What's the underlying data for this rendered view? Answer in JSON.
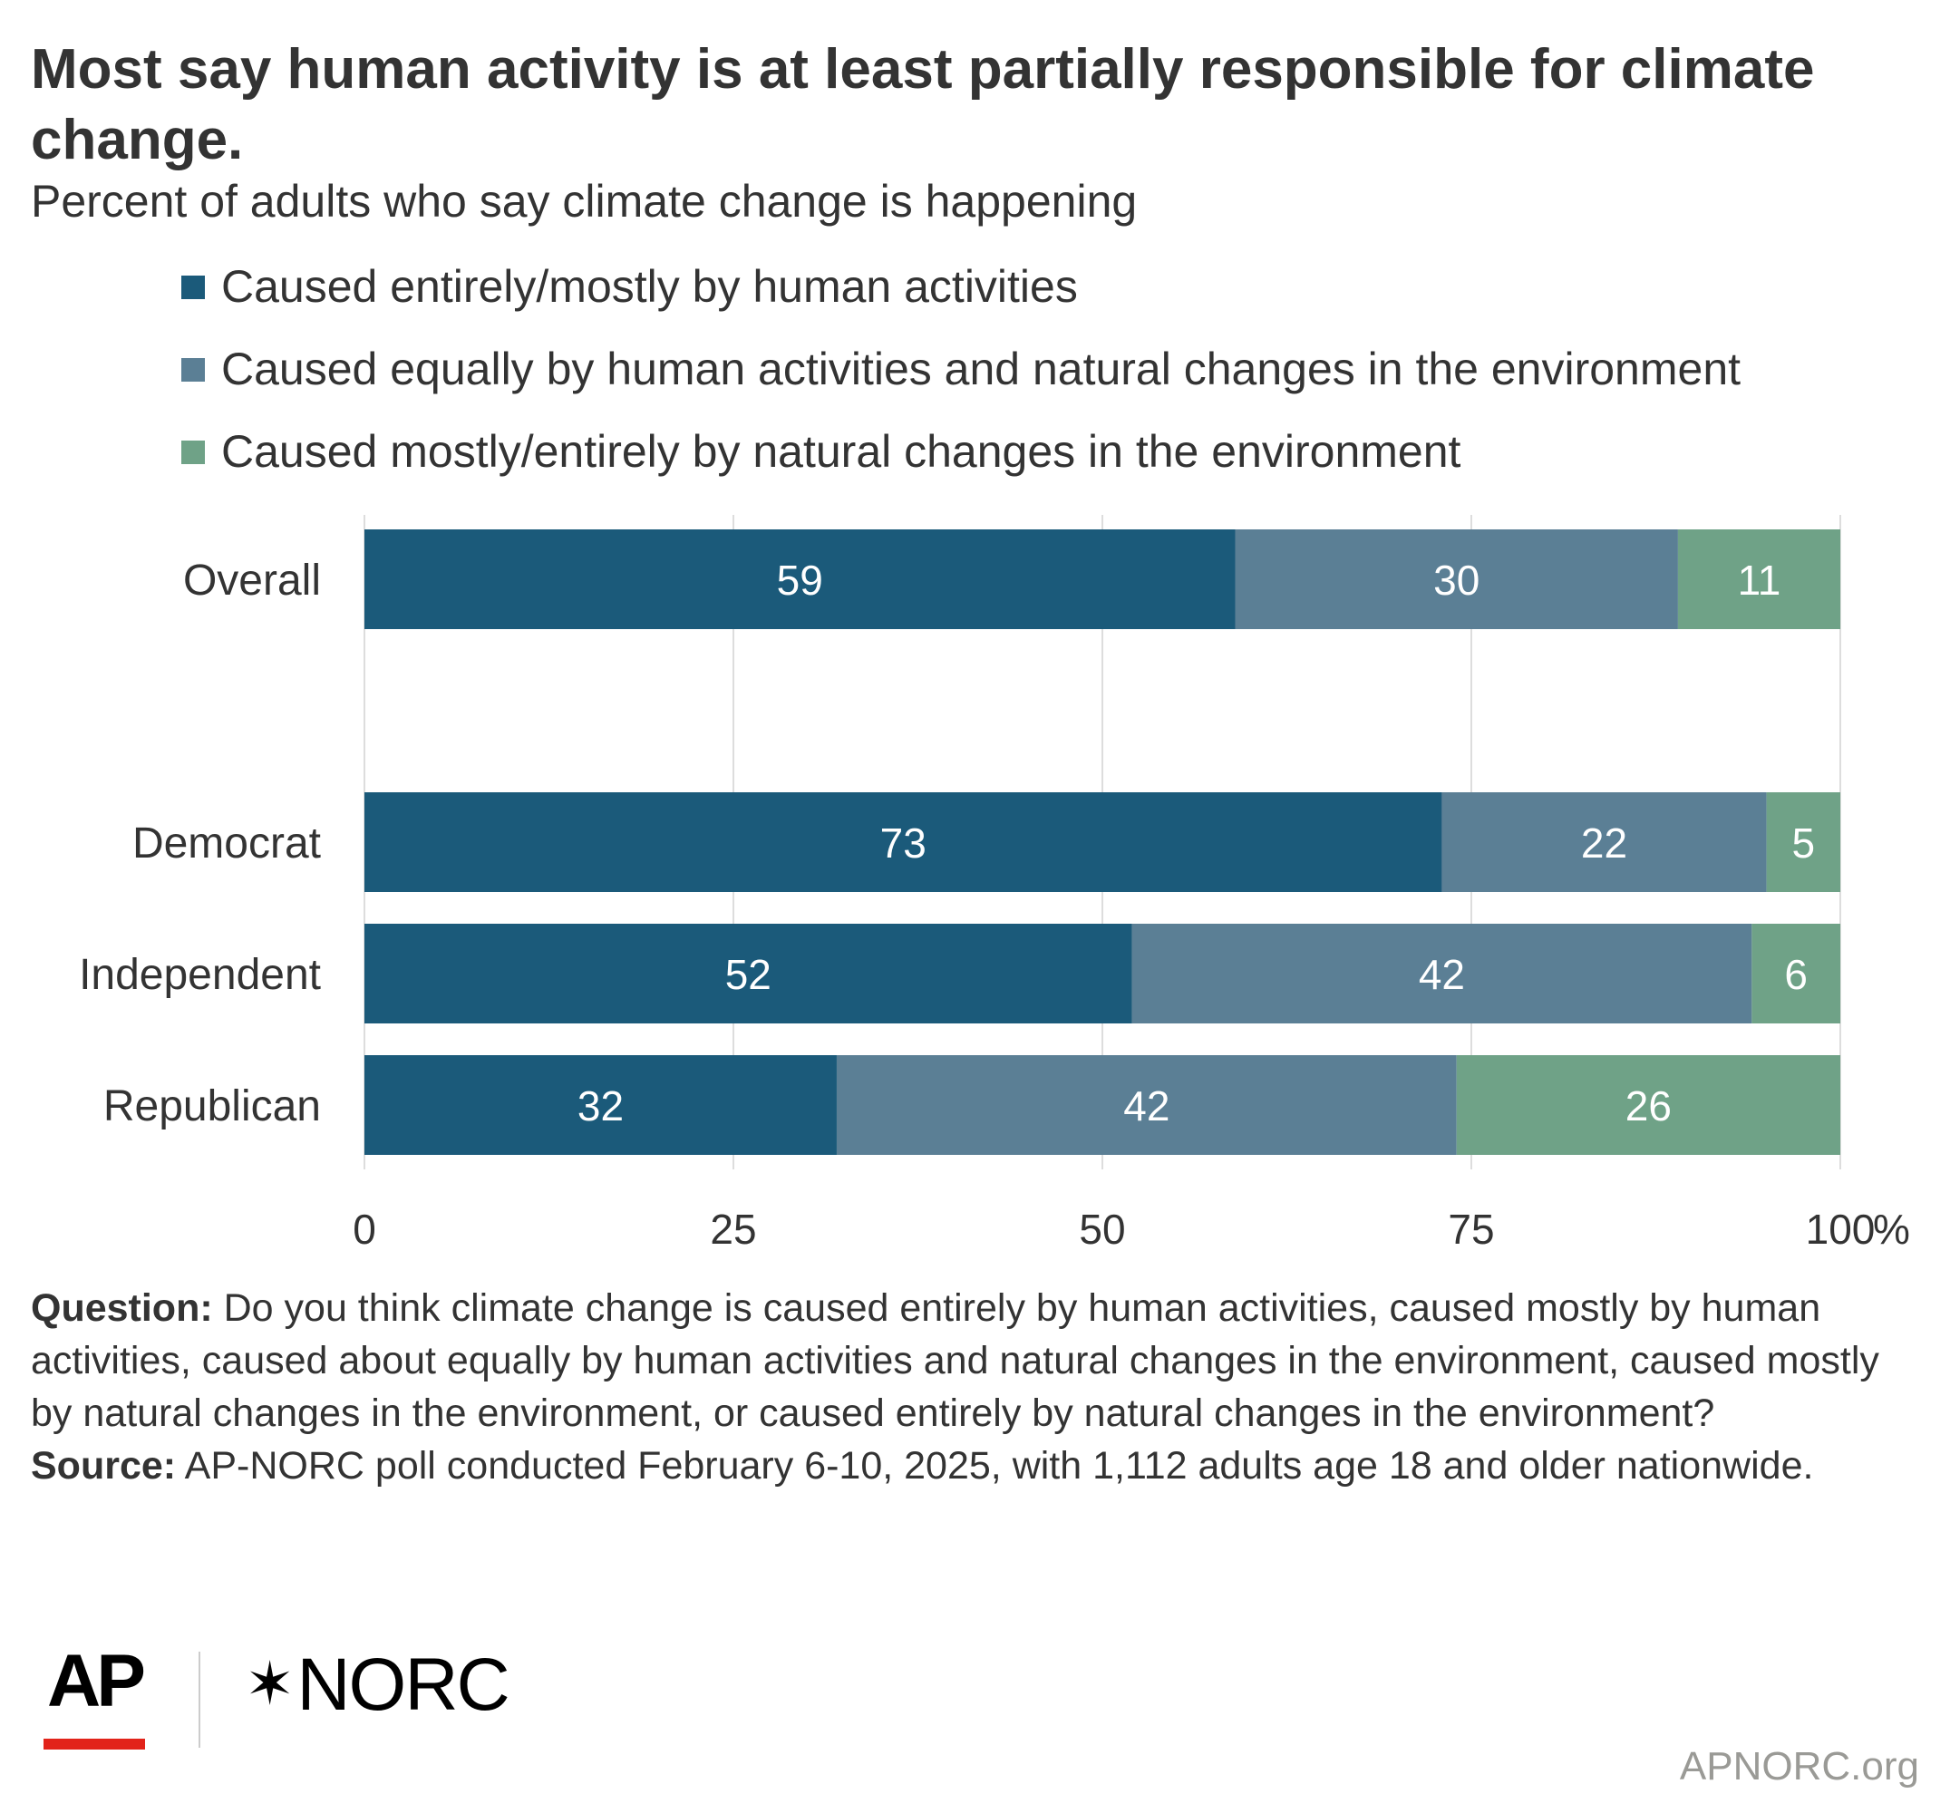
{
  "title": "Most say human activity is at least partially responsible for climate change.",
  "subtitle": "Percent of adults who say climate change is happening",
  "footnote": {
    "question_label": "Question:",
    "question_text": " Do you think climate change is caused entirely by human activities, caused mostly by human activities, caused about equally by human activities and natural changes in the environment, caused mostly by natural changes in the environment, or caused entirely by natural changes in the environment?",
    "source_label": "Source:",
    "source_text": " AP-NORC poll conducted February 6-10, 2025, with 1,112 adults age 18 and older nationwide."
  },
  "logos": {
    "ap": "AP",
    "norc": "NORC",
    "norc_mark": "star-icon"
  },
  "site": "APNORC.org",
  "colors": {
    "human": "#1b5a7a",
    "equal": "#5b7f95",
    "natural": "#6fa287",
    "label_text": "#ffffff",
    "grid": "#dddddd"
  },
  "chart_data": {
    "type": "bar",
    "orientation": "horizontal",
    "stacked": true,
    "categories": [
      "Overall",
      "Democrat",
      "Independent",
      "Republican"
    ],
    "series": [
      {
        "name": "Caused entirely/mostly by human activities",
        "values": [
          59,
          73,
          52,
          32
        ]
      },
      {
        "name": "Caused equally by human activities and natural changes in the environment",
        "values": [
          30,
          22,
          42,
          42
        ]
      },
      {
        "name": "Caused mostly/entirely by natural changes in the environment",
        "values": [
          11,
          5,
          6,
          26
        ]
      }
    ],
    "xlim": [
      0,
      100
    ],
    "xticks": [
      "0",
      "25",
      "50",
      "75",
      "100"
    ],
    "xtick_values": [
      0,
      25,
      50,
      75,
      100
    ],
    "x_unit": "%",
    "grid": true,
    "legend_position": "top"
  }
}
